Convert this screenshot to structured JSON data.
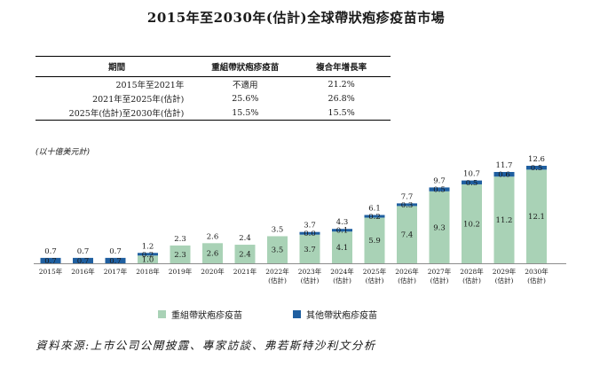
{
  "title": "2015年至2030年(估計)全球帶狀疱疹疫苗市場",
  "table": {
    "headers": [
      "期間",
      "重組帶狀疱疹疫苗",
      "複合年增長率"
    ],
    "rows": [
      [
        "2015年至2021年",
        "不適用",
        "21.2%"
      ],
      [
        "2021年至2025年(估計)",
        "25.6%",
        "26.8%"
      ],
      [
        "2025年(估計)至2030年(估計)",
        "15.5%",
        "15.5%"
      ]
    ]
  },
  "unit_label": "(以十億美元計)",
  "source": "資料來源:上市公司公開披露、專家訪談、弗若斯特沙利文分析",
  "colors": {
    "recombinant": "#a9d2b6",
    "other": "#1f5fa0"
  },
  "chart_data": {
    "type": "bar",
    "stacked": true,
    "categories": [
      [
        "2015年"
      ],
      [
        "2016年"
      ],
      [
        "2017年"
      ],
      [
        "2018年"
      ],
      [
        "2019年"
      ],
      [
        "2020年"
      ],
      [
        "2021年"
      ],
      [
        "2022年",
        "(估計)"
      ],
      [
        "2023年",
        "(估計)"
      ],
      [
        "2024年",
        "(估計)"
      ],
      [
        "2025年",
        "(估計)"
      ],
      [
        "2026年",
        "(估計)"
      ],
      [
        "2027年",
        "(估計)"
      ],
      [
        "2028年",
        "(估計)"
      ],
      [
        "2029年",
        "(估計)"
      ],
      [
        "2030年",
        "(估計)"
      ]
    ],
    "series": [
      {
        "name": "重組帶狀疱疹疫苗",
        "values": [
          null,
          null,
          null,
          1.0,
          2.3,
          2.6,
          2.4,
          3.5,
          3.7,
          4.1,
          5.9,
          7.4,
          9.3,
          10.2,
          11.2,
          12.1
        ]
      },
      {
        "name": "其他帶狀疱疹疫苗",
        "values": [
          0.7,
          0.7,
          0.7,
          0.2,
          null,
          null,
          null,
          null,
          0.0,
          0.1,
          0.2,
          0.3,
          0.5,
          0.5,
          0.6,
          0.5
        ]
      }
    ],
    "totals": [
      0.7,
      0.7,
      0.7,
      1.2,
      2.3,
      2.6,
      2.4,
      3.5,
      3.7,
      4.3,
      6.1,
      7.7,
      9.7,
      10.7,
      11.7,
      12.6
    ],
    "ylim": [
      0,
      12.6
    ]
  }
}
